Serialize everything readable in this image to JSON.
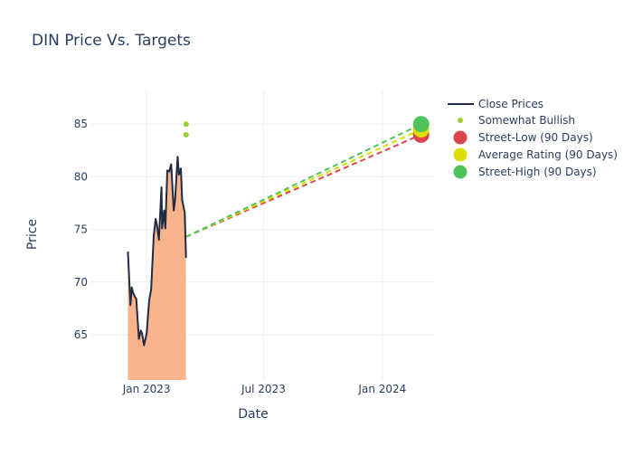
{
  "chart_data": {
    "type": "line",
    "title": "DIN Price Vs. Targets",
    "xlabel": "Date",
    "ylabel": "Price",
    "xlim": [
      "2022-10-06",
      "2024-03-21"
    ],
    "ylim": [
      60.7,
      88.2
    ],
    "grid": true,
    "legend_position": "top-right",
    "x_ticks": [
      {
        "date": "2023-01-01",
        "label": "Jan 2023"
      },
      {
        "date": "2023-07-01",
        "label": "Jul 2023"
      },
      {
        "date": "2024-01-01",
        "label": "Jan 2024"
      }
    ],
    "y_ticks": [
      65,
      70,
      75,
      80,
      85
    ],
    "close_prices": {
      "name": "Close Prices",
      "color": "#1f2a44",
      "fill_color": "#fab48c",
      "x": [
        "2022-12-03",
        "2022-12-07",
        "2022-12-09",
        "2022-12-11",
        "2022-12-14",
        "2022-12-16",
        "2022-12-20",
        "2022-12-23",
        "2022-12-25",
        "2022-12-28",
        "2023-01-01",
        "2023-01-05",
        "2023-01-08",
        "2023-01-12",
        "2023-01-15",
        "2023-01-17",
        "2023-01-20",
        "2023-01-24",
        "2023-01-25",
        "2023-01-28",
        "2023-01-30",
        "2023-02-02",
        "2023-02-05",
        "2023-02-08",
        "2023-02-12",
        "2023-02-14",
        "2023-02-18",
        "2023-02-20",
        "2023-02-23",
        "2023-02-25",
        "2023-03-01",
        "2023-03-03"
      ],
      "y": [
        72.9,
        67.8,
        69.5,
        69.0,
        68.6,
        68.4,
        64.6,
        65.4,
        65.1,
        64.0,
        65.1,
        68.3,
        69.3,
        74.4,
        76.0,
        75.4,
        74.0,
        79.0,
        75.1,
        76.8,
        75.1,
        80.6,
        80.5,
        81.2,
        76.8,
        77.8,
        81.9,
        80.2,
        80.8,
        77.8,
        76.6,
        72.3
      ]
    },
    "somewhat_bullish": {
      "name": "Somewhat Bullish",
      "color": "#9acd32",
      "x": [
        "2023-03-03",
        "2023-03-03"
      ],
      "y": [
        85,
        84
      ]
    },
    "targets": [
      {
        "name": "Street-Low (90 Days)",
        "color": "#d9474d",
        "from": {
          "x": "2023-03-03",
          "y": 74.3
        },
        "to": {
          "x": "2024-03-01",
          "y": 84.0
        }
      },
      {
        "name": "Average Rating (90 Days)",
        "color": "#dede00",
        "from": {
          "x": "2023-03-03",
          "y": 74.3
        },
        "to": {
          "x": "2024-03-01",
          "y": 84.5
        }
      },
      {
        "name": "Street-High (90 Days)",
        "color": "#4fc35a",
        "from": {
          "x": "2023-03-03",
          "y": 74.3
        },
        "to": {
          "x": "2024-03-01",
          "y": 85.0
        }
      }
    ]
  }
}
